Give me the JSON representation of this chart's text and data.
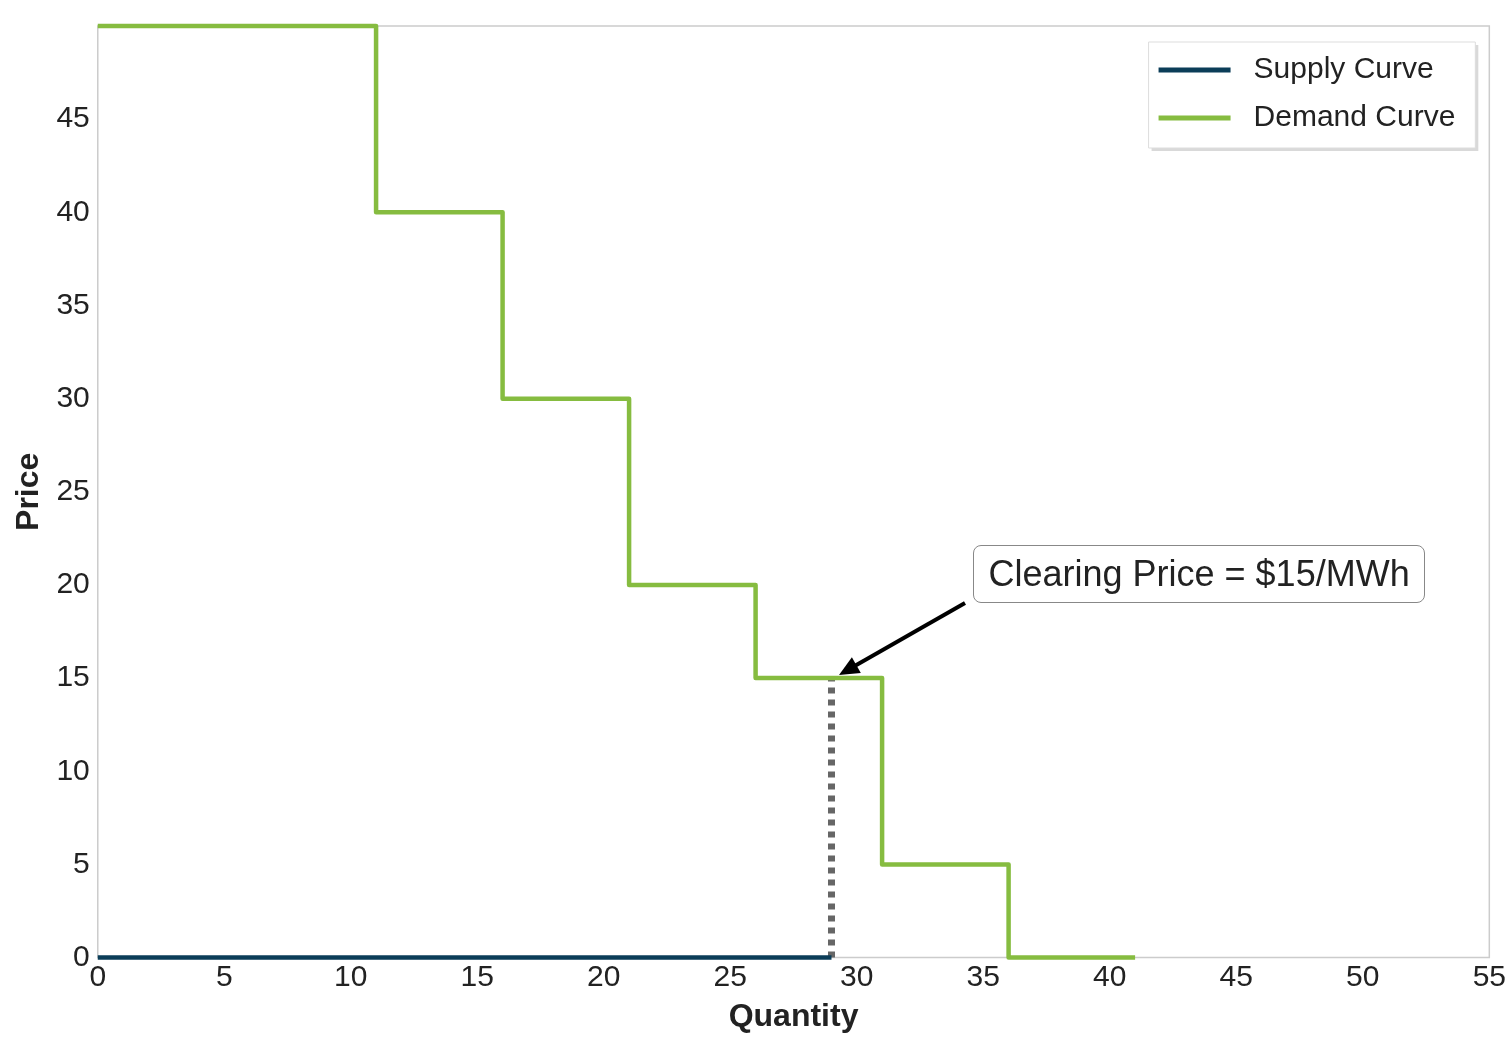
{
  "chart_data": {
    "type": "step",
    "xlabel": "Quantity",
    "ylabel": "Price",
    "xlim": [
      0,
      55
    ],
    "ylim": [
      0,
      50
    ],
    "xticks": [
      0,
      5,
      10,
      15,
      20,
      25,
      30,
      35,
      40,
      45,
      50,
      55
    ],
    "yticks": [
      0,
      5,
      10,
      15,
      20,
      25,
      30,
      35,
      40,
      45
    ],
    "grid": false,
    "legend": "top right",
    "marker": "none",
    "series": [
      {
        "name": "Supply Curve",
        "color": "#0b3d58",
        "x": [
          0,
          29
        ],
        "values": [
          0,
          0
        ]
      },
      {
        "name": "Demand Curve",
        "color": "#86bc40",
        "x": [
          0,
          11,
          16,
          21,
          26,
          31,
          36,
          41
        ],
        "values": [
          50,
          40,
          30,
          20,
          15,
          5,
          0,
          0
        ]
      },
      {
        "type": "line",
        "color": "#666666",
        "line_style": "dotted",
        "x": [
          29,
          29
        ],
        "values": [
          0,
          15
        ]
      }
    ],
    "annotations": [
      "Clearing Price = $15/MWh"
    ]
  }
}
